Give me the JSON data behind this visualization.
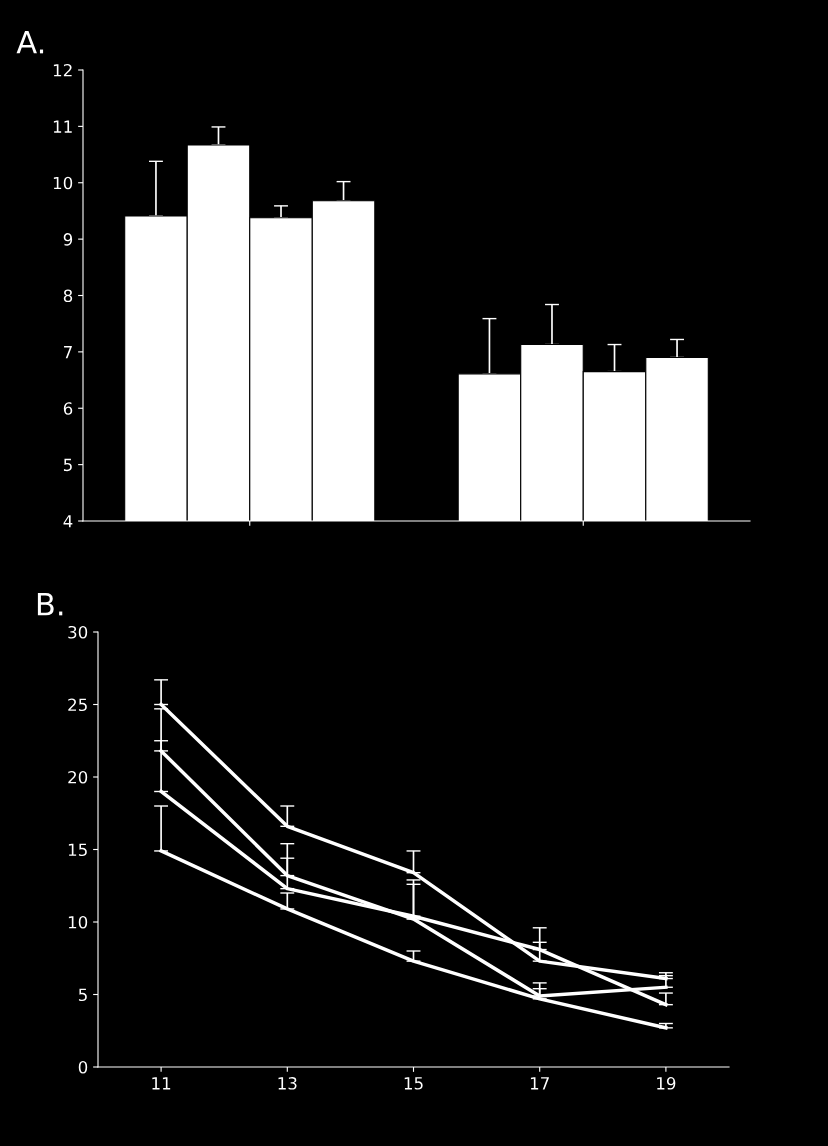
{
  "chart_data": [
    {
      "type": "bar",
      "title": "A.",
      "categories": [
        null,
        null
      ],
      "ylim": [
        4,
        12
      ],
      "yticks": [
        4,
        5,
        6,
        7,
        8,
        9,
        10,
        11,
        12
      ],
      "grid": false,
      "legend": false,
      "series": [
        {
          "color": "#ffffff",
          "values": [
            9.41,
            6.61
          ],
          "errors": [
            [
              9.41,
              10.38
            ],
            [
              6.61,
              7.59
            ]
          ]
        },
        {
          "color": "#ffffff",
          "values": [
            10.67,
            7.13
          ],
          "errors": [
            [
              10.67,
              10.99
            ],
            [
              7.13,
              7.84
            ]
          ]
        },
        {
          "color": "#ffffff",
          "values": [
            9.38,
            6.65
          ],
          "errors": [
            [
              9.38,
              9.59
            ],
            [
              6.65,
              7.13
            ]
          ]
        },
        {
          "color": "#ffffff",
          "values": [
            9.68,
            6.9
          ],
          "errors": [
            [
              9.68,
              10.02
            ],
            [
              6.9,
              7.22
            ]
          ]
        }
      ]
    },
    {
      "type": "line",
      "title": "B.",
      "categories": [
        "11",
        "13",
        "15",
        "17",
        "19"
      ],
      "ylim": [
        0,
        30
      ],
      "yticks": [
        0,
        5,
        10,
        15,
        20,
        25,
        30
      ],
      "grid": false,
      "legend": false,
      "marker": "none",
      "line_style": "solid",
      "series": [
        {
          "color": "#ffffff",
          "values": [
            25.0,
            16.6,
            13.4,
            7.3,
            6.1
          ],
          "errors": [
            [
              25.0,
              26.7
            ],
            [
              16.6,
              18.0
            ],
            [
              13.4,
              14.9
            ],
            [
              7.3,
              9.6
            ],
            [
              6.1,
              6.3
            ]
          ]
        },
        {
          "color": "#ffffff",
          "values": [
            21.8,
            13.2,
            10.2,
            4.9,
            5.5
          ],
          "errors": [
            [
              21.8,
              24.7
            ],
            [
              13.2,
              15.4
            ],
            [
              10.2,
              12.9
            ],
            [
              4.9,
              5.8
            ],
            [
              5.5,
              6.5
            ]
          ]
        },
        {
          "color": "#ffffff",
          "values": [
            19.0,
            12.3,
            10.4,
            8.1,
            4.3
          ],
          "errors": [
            [
              19.0,
              22.5
            ],
            [
              12.3,
              14.4
            ],
            [
              10.4,
              12.6
            ],
            [
              8.1,
              8.6
            ],
            [
              4.3,
              5.1
            ]
          ]
        },
        {
          "color": "#ffffff",
          "values": [
            14.9,
            10.9,
            7.3,
            4.7,
            2.7
          ],
          "errors": [
            [
              14.9,
              18.0
            ],
            [
              10.9,
              12.0
            ],
            [
              7.3,
              8.0
            ],
            [
              4.7,
              5.4
            ],
            [
              2.7,
              3.0
            ]
          ]
        }
      ]
    }
  ]
}
